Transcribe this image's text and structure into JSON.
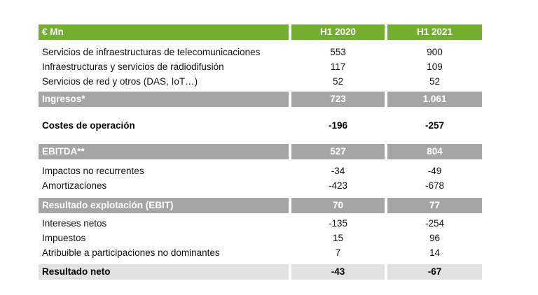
{
  "header": {
    "label": "€ Mn",
    "columns": [
      "H1 2020",
      "H1 2021"
    ]
  },
  "rows": [
    {
      "label": "Servicios de infraestructuras de telecomunicaciones",
      "values": [
        "553",
        "900"
      ]
    },
    {
      "label": "Infraestructuras y servicios de radiodifusión",
      "values": [
        "117",
        "109"
      ]
    },
    {
      "label": "Servicios de red y otros (DAS, IoT…)",
      "values": [
        "52",
        "52"
      ]
    },
    {
      "label": "Ingresos*",
      "values": [
        "723",
        "1.061"
      ]
    },
    {
      "label": "Costes de operación",
      "values": [
        "-196",
        "-257"
      ]
    },
    {
      "label": "EBITDA**",
      "values": [
        "527",
        "804"
      ]
    },
    {
      "label": "Impactos no recurrentes",
      "values": [
        "-34",
        "-49"
      ]
    },
    {
      "label": "Amortizaciones",
      "values": [
        "-423",
        "-678"
      ]
    },
    {
      "label": "Resultado explotación (EBIT)",
      "values": [
        "70",
        "77"
      ]
    },
    {
      "label": "Intereses netos",
      "values": [
        "-135",
        "-254"
      ]
    },
    {
      "label": "Impuestos",
      "values": [
        "15",
        "96"
      ]
    },
    {
      "label": "Atribuible a participaciones no dominantes",
      "values": [
        "7",
        "14"
      ]
    },
    {
      "label": "Resultado neto",
      "values": [
        "-43",
        "-67"
      ]
    }
  ]
}
